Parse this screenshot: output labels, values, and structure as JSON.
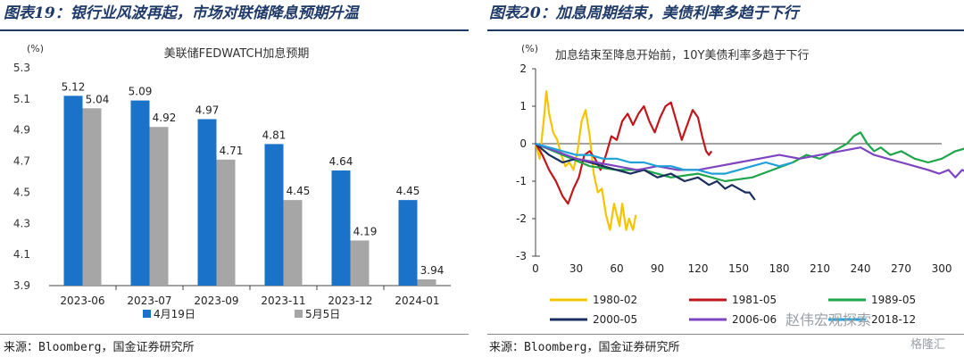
{
  "left": {
    "header": "图表19：银行业风波再起，市场对联储降息预期升温",
    "source": "来源：Bloomberg，国金证券研究所"
  },
  "right": {
    "header": "图表20：加息周期结束，美债利率多趋于下行",
    "source": "来源：Bloomberg，国金证券研究所"
  },
  "watermark": {
    "text": "赵伟宏观探索",
    "logo_text": "格隆汇"
  },
  "chart_data": [
    {
      "type": "bar",
      "title": "美联储FEDWATCH加息预期",
      "unit_label": "(%)",
      "categories": [
        "2023-06",
        "2023-07",
        "2023-09",
        "2023-11",
        "2023-12",
        "2024-01"
      ],
      "series": [
        {
          "name": "4月19日",
          "color": "#1a73c9",
          "values": [
            5.12,
            5.09,
            4.97,
            4.81,
            4.64,
            4.45
          ]
        },
        {
          "name": "5月5日",
          "color": "#a6a6a6",
          "values": [
            5.04,
            4.92,
            4.71,
            4.45,
            4.19,
            3.94
          ]
        }
      ],
      "ylim": [
        3.9,
        5.3
      ],
      "yticks": [
        "5.3",
        "5.1",
        "4.9",
        "4.7",
        "4.5",
        "4.3",
        "4.1",
        "3.9"
      ],
      "legend": "bottom"
    },
    {
      "type": "line",
      "title": "加息结束至降息开始前，10Y美债利率多趋于下行",
      "unit_label": "(%)",
      "xlim": [
        0,
        405
      ],
      "ylim": [
        -3,
        2
      ],
      "xticks": [
        "0",
        "30",
        "60",
        "90",
        "120",
        "150",
        "180",
        "210",
        "240",
        "270",
        "300",
        "330",
        "360",
        "390"
      ],
      "yticks": [
        "2",
        "1",
        "0",
        "-1",
        "-2",
        "-3"
      ],
      "legend": "bottom",
      "series": [
        {
          "name": "1980-02",
          "color": "#f5c400",
          "points": [
            [
              0,
              0
            ],
            [
              3,
              -0.4
            ],
            [
              6,
              0.6
            ],
            [
              8,
              1.4
            ],
            [
              10,
              0.8
            ],
            [
              13,
              0.3
            ],
            [
              16,
              0.1
            ],
            [
              19,
              -0.3
            ],
            [
              22,
              -0.6
            ],
            [
              25,
              -0.5
            ],
            [
              28,
              -0.7
            ],
            [
              31,
              -0.2
            ],
            [
              34,
              0.6
            ],
            [
              37,
              0.9
            ],
            [
              40,
              0.2
            ],
            [
              43,
              -0.8
            ],
            [
              46,
              -1.3
            ],
            [
              49,
              -1.2
            ],
            [
              52,
              -1.9
            ],
            [
              55,
              -2.3
            ],
            [
              58,
              -1.6
            ],
            [
              60,
              -1.9
            ],
            [
              62,
              -2.2
            ],
            [
              64,
              -1.6
            ],
            [
              67,
              -2.3
            ],
            [
              69,
              -2.0
            ],
            [
              72,
              -2.3
            ],
            [
              74,
              -1.9
            ]
          ]
        },
        {
          "name": "1981-05",
          "color": "#c0171c",
          "points": [
            [
              0,
              0
            ],
            [
              5,
              -0.3
            ],
            [
              10,
              -0.7
            ],
            [
              15,
              -1.0
            ],
            [
              20,
              -1.4
            ],
            [
              24,
              -1.6
            ],
            [
              28,
              -1.2
            ],
            [
              32,
              -0.9
            ],
            [
              36,
              -0.3
            ],
            [
              40,
              -0.2
            ],
            [
              44,
              -0.4
            ],
            [
              48,
              -0.7
            ],
            [
              52,
              -0.3
            ],
            [
              56,
              0.2
            ],
            [
              60,
              0.1
            ],
            [
              64,
              0.6
            ],
            [
              68,
              0.8
            ],
            [
              72,
              0.5
            ],
            [
              76,
              0.8
            ],
            [
              80,
              1.0
            ],
            [
              84,
              0.6
            ],
            [
              88,
              0.3
            ],
            [
              92,
              0.7
            ],
            [
              96,
              1.0
            ],
            [
              100,
              1.1
            ],
            [
              104,
              0.6
            ],
            [
              108,
              0.1
            ],
            [
              112,
              0.5
            ],
            [
              116,
              0.9
            ],
            [
              120,
              0.7
            ],
            [
              123,
              0.2
            ],
            [
              126,
              -0.2
            ],
            [
              128,
              -0.3
            ],
            [
              130,
              -0.2
            ]
          ]
        },
        {
          "name": "1989-05",
          "color": "#1fa54a",
          "points": [
            [
              0,
              0
            ],
            [
              20,
              -0.3
            ],
            [
              40,
              -0.6
            ],
            [
              60,
              -0.7
            ],
            [
              80,
              -0.7
            ],
            [
              100,
              -0.9
            ],
            [
              120,
              -0.8
            ],
            [
              140,
              -1.0
            ],
            [
              160,
              -0.9
            ],
            [
              175,
              -0.7
            ],
            [
              190,
              -0.5
            ],
            [
              200,
              -0.3
            ],
            [
              210,
              -0.4
            ],
            [
              220,
              -0.2
            ],
            [
              230,
              0.0
            ],
            [
              235,
              0.2
            ],
            [
              240,
              0.3
            ],
            [
              245,
              0.0
            ],
            [
              250,
              -0.2
            ],
            [
              255,
              -0.1
            ],
            [
              262,
              -0.3
            ],
            [
              270,
              -0.2
            ],
            [
              280,
              -0.4
            ],
            [
              290,
              -0.5
            ],
            [
              300,
              -0.4
            ],
            [
              310,
              -0.2
            ],
            [
              320,
              -0.1
            ],
            [
              330,
              0.0
            ],
            [
              335,
              0.2
            ],
            [
              340,
              0.1
            ],
            [
              345,
              0.3
            ],
            [
              350,
              0.1
            ],
            [
              355,
              0.2
            ],
            [
              360,
              0.0
            ],
            [
              365,
              -0.2
            ],
            [
              370,
              -0.1
            ],
            [
              375,
              -0.3
            ],
            [
              380,
              -0.4
            ],
            [
              385,
              -0.6
            ],
            [
              390,
              -0.9
            ],
            [
              394,
              -0.7
            ],
            [
              398,
              -0.8
            ]
          ]
        },
        {
          "name": "2000-05",
          "color": "#1b2f5f",
          "points": [
            [
              0,
              0
            ],
            [
              10,
              -0.3
            ],
            [
              20,
              -0.5
            ],
            [
              30,
              -0.4
            ],
            [
              40,
              -0.5
            ],
            [
              50,
              -0.6
            ],
            [
              60,
              -0.7
            ],
            [
              70,
              -0.8
            ],
            [
              80,
              -0.7
            ],
            [
              90,
              -0.9
            ],
            [
              100,
              -0.8
            ],
            [
              110,
              -1.0
            ],
            [
              120,
              -0.9
            ],
            [
              128,
              -1.1
            ],
            [
              134,
              -1.0
            ],
            [
              140,
              -1.2
            ],
            [
              145,
              -1.1
            ],
            [
              150,
              -1.2
            ],
            [
              155,
              -1.3
            ],
            [
              158,
              -1.3
            ],
            [
              160,
              -1.4
            ],
            [
              162,
              -1.5
            ]
          ]
        },
        {
          "name": "2006-06",
          "color": "#7e44c1",
          "points": [
            [
              0,
              0
            ],
            [
              15,
              -0.2
            ],
            [
              30,
              -0.4
            ],
            [
              45,
              -0.5
            ],
            [
              60,
              -0.6
            ],
            [
              75,
              -0.7
            ],
            [
              90,
              -0.6
            ],
            [
              105,
              -0.7
            ],
            [
              120,
              -0.7
            ],
            [
              135,
              -0.6
            ],
            [
              150,
              -0.5
            ],
            [
              165,
              -0.4
            ],
            [
              180,
              -0.3
            ],
            [
              195,
              -0.4
            ],
            [
              210,
              -0.3
            ],
            [
              225,
              -0.2
            ],
            [
              240,
              -0.1
            ],
            [
              250,
              -0.3
            ],
            [
              260,
              -0.4
            ],
            [
              270,
              -0.5
            ],
            [
              280,
              -0.6
            ],
            [
              290,
              -0.7
            ],
            [
              298,
              -0.8
            ],
            [
              305,
              -0.7
            ],
            [
              310,
              -0.9
            ],
            [
              315,
              -0.7
            ],
            [
              318,
              -0.75
            ]
          ]
        },
        {
          "name": "2018-12",
          "color": "#1fa0d8",
          "points": [
            [
              0,
              0
            ],
            [
              10,
              -0.1
            ],
            [
              20,
              -0.2
            ],
            [
              30,
              -0.3
            ],
            [
              40,
              -0.3
            ],
            [
              50,
              -0.4
            ],
            [
              60,
              -0.4
            ],
            [
              70,
              -0.5
            ],
            [
              80,
              -0.5
            ],
            [
              90,
              -0.6
            ],
            [
              100,
              -0.6
            ],
            [
              110,
              -0.7
            ],
            [
              120,
              -0.7
            ],
            [
              130,
              -0.8
            ],
            [
              140,
              -0.8
            ],
            [
              150,
              -0.7
            ],
            [
              160,
              -0.6
            ],
            [
              170,
              -0.5
            ],
            [
              180,
              -0.6
            ],
            [
              190,
              -0.5
            ]
          ]
        }
      ]
    }
  ]
}
